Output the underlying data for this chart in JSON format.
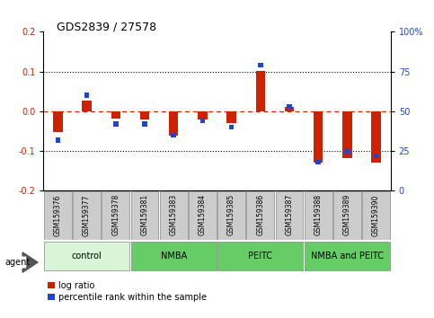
{
  "title": "GDS2839 / 27578",
  "samples": [
    "GSM159376",
    "GSM159377",
    "GSM159378",
    "GSM159381",
    "GSM159383",
    "GSM159384",
    "GSM159385",
    "GSM159386",
    "GSM159387",
    "GSM159388",
    "GSM159389",
    "GSM159390"
  ],
  "log_ratio": [
    -0.052,
    0.028,
    -0.018,
    -0.02,
    -0.062,
    -0.02,
    -0.03,
    0.102,
    0.01,
    -0.13,
    -0.118,
    -0.13
  ],
  "percentile_rank": [
    32,
    60,
    42,
    42,
    35,
    44,
    40,
    79,
    53,
    18,
    25,
    22
  ],
  "group_configs": [
    {
      "label": "control",
      "start": 0,
      "end": 3,
      "color": "#d8f5d8"
    },
    {
      "label": "NMBA",
      "start": 3,
      "end": 6,
      "color": "#66cc66"
    },
    {
      "label": "PEITC",
      "start": 6,
      "end": 9,
      "color": "#66cc66"
    },
    {
      "label": "NMBA and PEITC",
      "start": 9,
      "end": 12,
      "color": "#66cc66"
    }
  ],
  "red_color": "#cc2200",
  "blue_color": "#2244cc",
  "bar_width": 0.35,
  "ylim_left": [
    -0.2,
    0.2
  ],
  "ylim_right": [
    0,
    100
  ],
  "yticks_left": [
    -0.2,
    -0.1,
    0.0,
    0.1,
    0.2
  ],
  "yticks_right": [
    0,
    25,
    50,
    75,
    100
  ],
  "legend_items": [
    "log ratio",
    "percentile rank within the sample"
  ],
  "agent_label": "agent",
  "figsize": [
    4.83,
    3.54
  ],
  "dpi": 100
}
